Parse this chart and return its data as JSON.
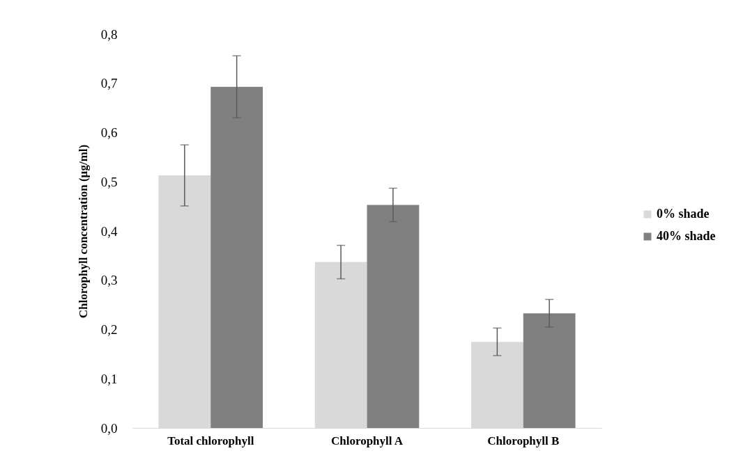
{
  "chart_data": {
    "type": "bar",
    "ylabel": "Chlorophyll concentration (µg/ml)",
    "categories": [
      "Total chlorophyll",
      "Chlorophyll A",
      "Chlorophyll B"
    ],
    "series": [
      {
        "name": "0% shade",
        "color": "#d9d9d9",
        "values": [
          0.513,
          0.337,
          0.175
        ],
        "errors": [
          0.062,
          0.034,
          0.028
        ]
      },
      {
        "name": "40% shade",
        "color": "#808080",
        "values": [
          0.693,
          0.453,
          0.233
        ],
        "errors": [
          0.063,
          0.034,
          0.028
        ]
      }
    ],
    "ylim": [
      0,
      0.8
    ],
    "yticks": [
      {
        "value": 0,
        "label": "0,0"
      },
      {
        "value": 0.1,
        "label": "0,1"
      },
      {
        "value": 0.2,
        "label": "0,2"
      },
      {
        "value": 0.3,
        "label": "0,3"
      },
      {
        "value": 0.4,
        "label": "0,4"
      },
      {
        "value": 0.5,
        "label": "0,5"
      },
      {
        "value": 0.6,
        "label": "0,6"
      },
      {
        "value": 0.7,
        "label": "0,7"
      },
      {
        "value": 0.8,
        "label": "0,8"
      }
    ],
    "grid": false,
    "legend": "right"
  }
}
